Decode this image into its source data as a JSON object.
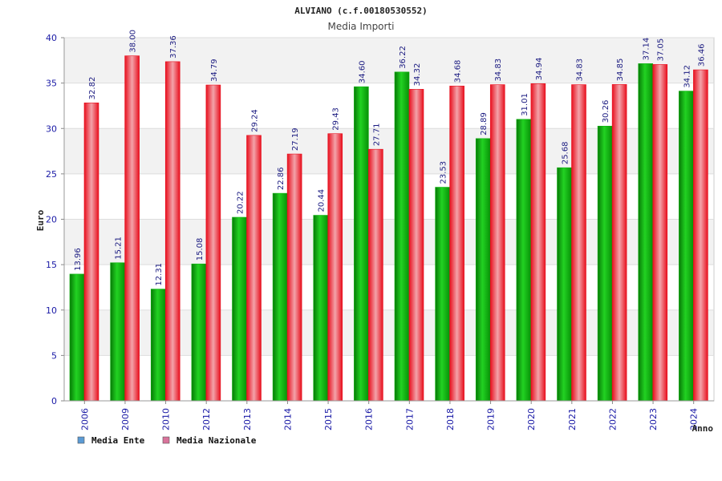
{
  "chart_data": {
    "type": "bar",
    "title": "ALVIANO (c.f.00180530552)",
    "subtitle": "Media Importi",
    "xlabel": "Anno",
    "ylabel": "Euro",
    "ylim": [
      0,
      40
    ],
    "yticks": [
      0,
      5,
      10,
      15,
      20,
      25,
      30,
      35,
      40
    ],
    "grid": true,
    "legend_position": "bottom-left",
    "categories": [
      "2006",
      "2009",
      "2010",
      "2012",
      "2013",
      "2014",
      "2015",
      "2016",
      "2017",
      "2018",
      "2019",
      "2020",
      "2021",
      "2022",
      "2023",
      "2024"
    ],
    "series": [
      {
        "name": "Media Ente",
        "color": "#11b311",
        "legend_color": "#5b9bd5",
        "values": [
          13.96,
          15.21,
          12.31,
          15.08,
          20.22,
          22.86,
          20.44,
          34.6,
          36.22,
          23.53,
          28.89,
          31.01,
          25.68,
          30.26,
          37.14,
          34.12
        ],
        "labels": [
          "13.96",
          "15.21",
          "12.31",
          "15.08",
          "20.22",
          "22.86",
          "20.44",
          "34.60",
          "36.22",
          "23.53",
          "28.89",
          "31.01",
          "25.68",
          "30.26",
          "37.14",
          "34.12"
        ]
      },
      {
        "name": "Media Nazionale",
        "color": "#e8101e",
        "legend_color": "#d9739b",
        "values": [
          32.82,
          38.0,
          37.36,
          34.79,
          29.24,
          27.19,
          29.43,
          27.71,
          34.32,
          34.68,
          34.83,
          34.94,
          34.83,
          34.85,
          37.05,
          36.46
        ],
        "labels": [
          "32.82",
          "38.00",
          "37.36",
          "34.79",
          "29.24",
          "27.19",
          "29.43",
          "27.71",
          "34.32",
          "34.68",
          "34.83",
          "34.94",
          "34.83",
          "34.85",
          "37.05",
          "36.46"
        ]
      }
    ]
  }
}
